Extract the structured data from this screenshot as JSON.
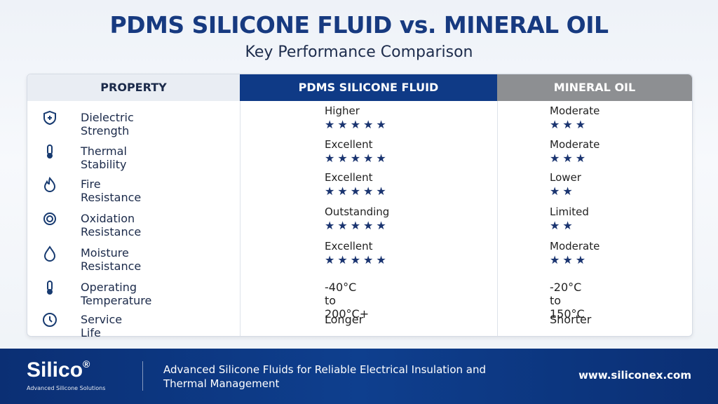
{
  "header": {
    "title": "PDMS SILICONE FLUID vs. MINERAL OIL",
    "subtitle": "Key Performance Comparison"
  },
  "table": {
    "columns": [
      "PROPERTY",
      "PDMS SILICONE FLUID",
      "MINERAL OIL"
    ],
    "rows": [
      {
        "property": "Dielectric Strength",
        "pdms": "Higher",
        "pdms_stars": "★★★★★",
        "mineral": "Moderate",
        "mineral_stars": "★★★"
      },
      {
        "property": "Thermal Stability",
        "pdms": "Excellent",
        "pdms_stars": "★★★★★",
        "mineral": "Moderate",
        "mineral_stars": "★★★"
      },
      {
        "property": "Fire Resistance",
        "pdms": "Excellent",
        "pdms_stars": "★★★★★",
        "mineral": "Lower",
        "mineral_stars": "★★"
      },
      {
        "property": "Oxidation Resistance",
        "pdms": "Outstanding",
        "pdms_stars": "★★★★★",
        "mineral": "Limited",
        "mineral_stars": "★★"
      },
      {
        "property": "Moisture Resistance",
        "pdms": "Excellent",
        "pdms_stars": "★★★★★",
        "mineral": "Moderate",
        "mineral_stars": "★★★"
      },
      {
        "property": "Operating Temperature",
        "pdms": "-40°C to 200°C+",
        "mineral": "-20°C to 150°C"
      },
      {
        "property": "Service Life",
        "pdms": "Longer",
        "mineral": "Shorter"
      }
    ]
  },
  "footer": {
    "logo": "Silico",
    "logo_mark": "®",
    "tagline": "Advanced Silicone Solutions",
    "description": "Advanced Silicone Fluids for Reliable Electrical Insulation and Thermal Management",
    "url": "www.siliconex.com"
  }
}
